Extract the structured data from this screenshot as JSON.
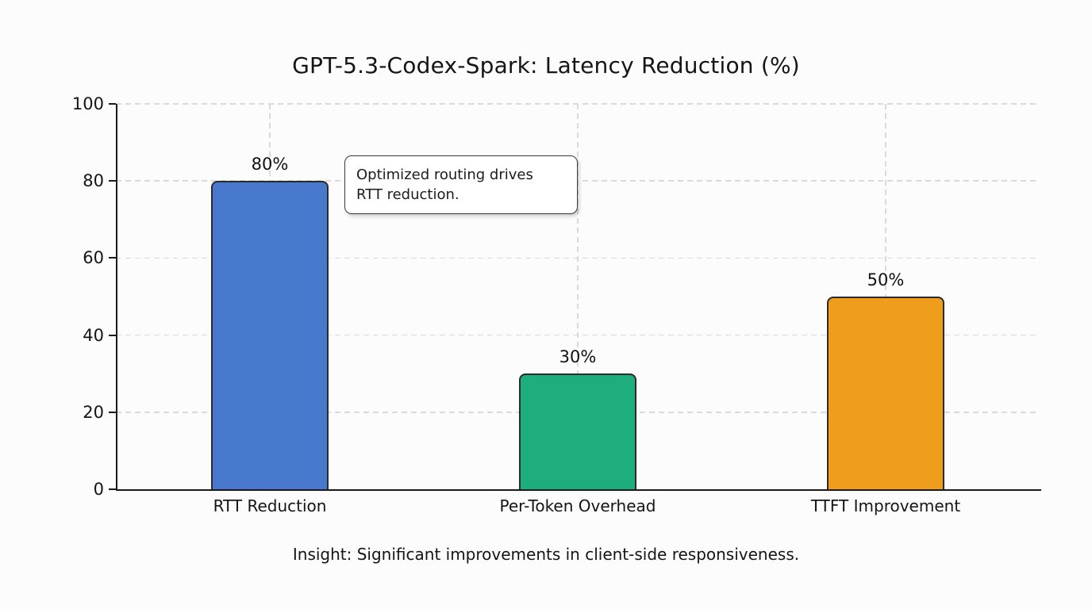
{
  "page": {
    "background_color": "#fcfcfc"
  },
  "chart_data": {
    "type": "bar",
    "title": "GPT-5.3-Codex-Spark: Latency Reduction (%)",
    "categories": [
      "RTT Reduction",
      "Per-Token Overhead",
      "TTFT Improvement"
    ],
    "values": [
      80,
      30,
      50
    ],
    "value_labels": [
      "80%",
      "30%",
      "50%"
    ],
    "bar_colors": [
      "#4878CB",
      "#1EAE7D",
      "#EF9D1C"
    ],
    "bar_border_color": "#2b2b2b",
    "xlabel": "",
    "ylabel": "",
    "ylim": [
      0,
      100
    ],
    "yticks": [
      0,
      20,
      40,
      60,
      80,
      100
    ],
    "grid": true,
    "gridline_color": "#d9d9de",
    "axis_color": "#1a1a1a",
    "legend": null,
    "annotation": {
      "text": "Optimized routing drives\nRTT reduction."
    },
    "caption": "Insight: Significant improvements in client-side responsiveness."
  }
}
